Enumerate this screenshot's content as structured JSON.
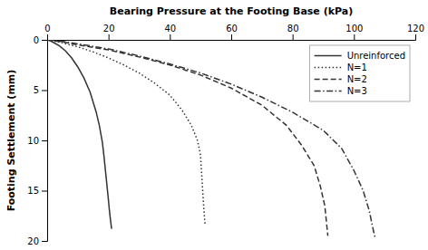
{
  "chart_data": {
    "type": "line",
    "xlabel": "Bearing Pressure at the Footing Base (kPa)",
    "ylabel": "Footing Settlement (mm)",
    "xlim": [
      0,
      120
    ],
    "ylim": [
      20,
      0
    ],
    "xticks": [
      0,
      20,
      40,
      60,
      80,
      100,
      120
    ],
    "yticks": [
      0,
      5,
      10,
      15,
      20
    ],
    "grid": false,
    "legend": "upper right",
    "series": [
      {
        "name": "Unreinforced",
        "line_style": "solid",
        "color": "#333333",
        "x": [
          0,
          1,
          2,
          4,
          6,
          8,
          10,
          12,
          14,
          16,
          17,
          18,
          18.5,
          19.0,
          19.5,
          20.0,
          20.3,
          20.6,
          20.8,
          21.0
        ],
        "values": [
          0,
          0.1,
          0.25,
          0.6,
          1.1,
          1.8,
          2.7,
          3.8,
          5.2,
          7.2,
          8.5,
          10.2,
          11.5,
          13.0,
          14.5,
          16.0,
          17.0,
          17.8,
          18.3,
          18.8
        ]
      },
      {
        "name": "N=1",
        "line_style": "dotted",
        "color": "#333333",
        "x": [
          0,
          2,
          5,
          10,
          15,
          20,
          25,
          30,
          35,
          40,
          44,
          47,
          49,
          50,
          50.5,
          51.0,
          51.5
        ],
        "values": [
          0,
          0.1,
          0.3,
          0.7,
          1.2,
          1.8,
          2.5,
          3.3,
          4.3,
          5.5,
          7.0,
          8.5,
          10.0,
          11.5,
          14.0,
          16.5,
          18.5
        ]
      },
      {
        "name": "N=2",
        "line_style": "dashed",
        "color": "#333333",
        "x": [
          0,
          5,
          10,
          20,
          30,
          40,
          50,
          60,
          70,
          78,
          83,
          87,
          89,
          90.5,
          91.0,
          91.5
        ],
        "values": [
          0,
          0.2,
          0.5,
          1.0,
          1.7,
          2.5,
          3.5,
          4.8,
          6.5,
          8.5,
          10.5,
          12.5,
          14.5,
          16.5,
          18.0,
          19.5
        ]
      },
      {
        "name": "N=3",
        "line_style": "dashdot",
        "color": "#333333",
        "x": [
          0,
          5,
          10,
          20,
          30,
          40,
          50,
          60,
          70,
          80,
          90,
          96,
          100,
          103,
          105,
          106,
          107
        ],
        "values": [
          0,
          0.15,
          0.4,
          0.9,
          1.6,
          2.4,
          3.3,
          4.4,
          5.7,
          7.2,
          9.0,
          10.8,
          13.0,
          15.0,
          17.0,
          18.5,
          19.8
        ]
      }
    ]
  }
}
